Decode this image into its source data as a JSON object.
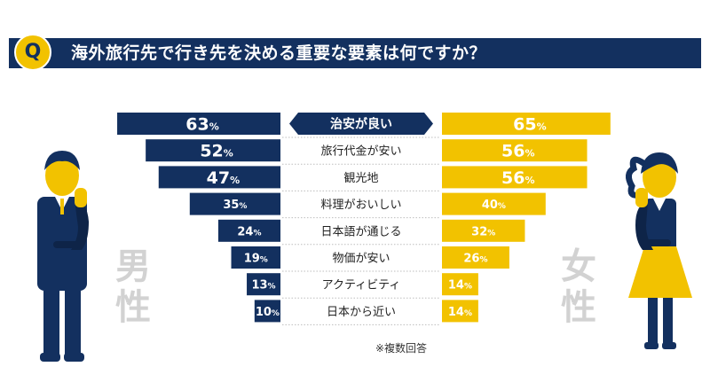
{
  "question": {
    "badge": "Q",
    "text": "海外旅行先で行き先を決める重要な要素は何ですか？"
  },
  "labels": {
    "male": "男性",
    "female": "女性"
  },
  "note": "※複数回答",
  "colors": {
    "male": "#13305f",
    "female": "#f2c200",
    "gender_text": "#d2d2d2",
    "highlight_label_bg": "#13305f"
  },
  "chart_data": {
    "type": "bar",
    "categories": [
      "治安が良い",
      "旅行代金が安い",
      "観光地",
      "料理がおいしい",
      "日本語が通じる",
      "物価が安い",
      "アクティビティ",
      "日本から近い"
    ],
    "series": [
      {
        "name": "男性",
        "values": [
          63,
          52,
          47,
          35,
          24,
          19,
          13,
          10
        ]
      },
      {
        "name": "女性",
        "values": [
          65,
          56,
          56,
          40,
          32,
          26,
          14,
          14
        ]
      }
    ],
    "unit": "%",
    "highlight_index": 0
  }
}
